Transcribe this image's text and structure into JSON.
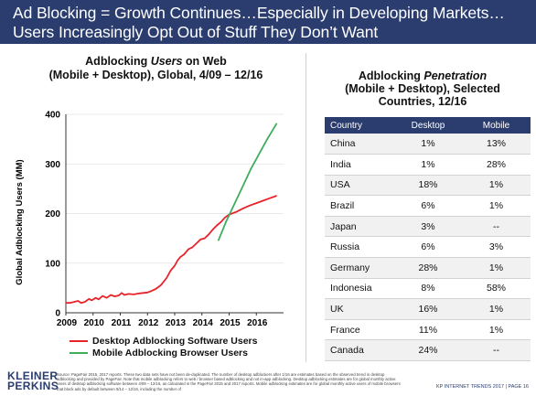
{
  "header": {
    "line1": "Ad Blocking = Growth Continues…Especially in Developing Markets…",
    "line2": "Users Increasingly Opt Out of Stuff They Don’t Want"
  },
  "left_title": {
    "pre": "Adblocking ",
    "italic": "Users",
    "post": " on Web",
    "line2": "(Mobile + Desktop), Global, 4/09 – 12/16"
  },
  "chart_data": {
    "type": "line",
    "title": "Adblocking Users on Web (Mobile + Desktop), Global, 4/09 – 12/16",
    "ylabel": "Global Adblocking Users (MM)",
    "xlabel": "",
    "ylim": [
      0,
      400
    ],
    "yticks": [
      0,
      100,
      200,
      300,
      400
    ],
    "xlim": [
      2009,
      2017
    ],
    "xticks": [
      "2009",
      "2010",
      "2011",
      "2012",
      "2013",
      "2014",
      "2015",
      "2016"
    ],
    "series": [
      {
        "name": "Desktop Adblocking Software Users",
        "color": "#e8232a",
        "points": [
          [
            2009.0,
            20
          ],
          [
            2009.15,
            20
          ],
          [
            2009.3,
            22
          ],
          [
            2009.45,
            24
          ],
          [
            2009.55,
            20
          ],
          [
            2009.7,
            22
          ],
          [
            2009.85,
            28
          ],
          [
            2009.95,
            25
          ],
          [
            2010.1,
            30
          ],
          [
            2010.2,
            27
          ],
          [
            2010.35,
            34
          ],
          [
            2010.5,
            30
          ],
          [
            2010.65,
            36
          ],
          [
            2010.8,
            33
          ],
          [
            2010.95,
            35
          ],
          [
            2011.05,
            40
          ],
          [
            2011.15,
            36
          ],
          [
            2011.3,
            38
          ],
          [
            2011.5,
            37
          ],
          [
            2011.7,
            39
          ],
          [
            2011.85,
            40
          ],
          [
            2012.0,
            41
          ],
          [
            2012.15,
            44
          ],
          [
            2012.3,
            48
          ],
          [
            2012.5,
            56
          ],
          [
            2012.7,
            70
          ],
          [
            2012.85,
            85
          ],
          [
            2013.0,
            95
          ],
          [
            2013.1,
            105
          ],
          [
            2013.2,
            112
          ],
          [
            2013.35,
            118
          ],
          [
            2013.5,
            128
          ],
          [
            2013.65,
            132
          ],
          [
            2013.8,
            140
          ],
          [
            2013.95,
            148
          ],
          [
            2014.1,
            150
          ],
          [
            2014.25,
            158
          ],
          [
            2014.4,
            168
          ],
          [
            2014.55,
            176
          ],
          [
            2014.7,
            183
          ],
          [
            2014.85,
            192
          ],
          [
            2015.0,
            198
          ],
          [
            2015.25,
            203
          ],
          [
            2015.5,
            210
          ],
          [
            2015.75,
            216
          ],
          [
            2016.0,
            221
          ],
          [
            2016.25,
            226
          ],
          [
            2016.5,
            231
          ],
          [
            2016.75,
            236
          ]
        ]
      },
      {
        "name": "Mobile Adblocking Browser Users",
        "color": "#3fae5b",
        "points": [
          [
            2014.6,
            145
          ],
          [
            2014.9,
            185
          ],
          [
            2015.2,
            220
          ],
          [
            2015.5,
            255
          ],
          [
            2015.8,
            290
          ],
          [
            2016.1,
            320
          ],
          [
            2016.4,
            350
          ],
          [
            2016.75,
            382
          ]
        ]
      }
    ],
    "legend": "bottom-left"
  },
  "right_title": {
    "pre": "Adblocking ",
    "italic": "Penetration",
    "line2": "(Mobile + Desktop), Selected",
    "line3": "Countries, 12/16"
  },
  "table": {
    "headers": [
      "Country",
      "Desktop",
      "Mobile"
    ],
    "rows": [
      [
        "China",
        "1%",
        "13%"
      ],
      [
        "India",
        "1%",
        "28%"
      ],
      [
        "USA",
        "18%",
        "1%"
      ],
      [
        "Brazil",
        "6%",
        "1%"
      ],
      [
        "Japan",
        "3%",
        "--"
      ],
      [
        "Russia",
        "6%",
        "3%"
      ],
      [
        "Germany",
        "28%",
        "1%"
      ],
      [
        "Indonesia",
        "8%",
        "58%"
      ],
      [
        "UK",
        "16%",
        "1%"
      ],
      [
        "France",
        "11%",
        "1%"
      ],
      [
        "Canada",
        "24%",
        "--"
      ]
    ]
  },
  "footer": {
    "logo_line1": "KLEINER",
    "logo_line2": "PERKINS",
    "source": "Source: PageFair 2015, 2017 reports. These two data sets have not been de-duplicated. The number of desktop adblockers after 1/16 are estimates based on the observed trend in desktop adblocking and provided by PageFair. Note that mobile adblocking refers to web / browser based adblocking and not in-app adblocking. Desktop adblocking estimates are for global monthly active users of desktop adblocking software between 4/09 – 12/16, as calculated in the PageFair 2015 and 2017 reports. Mobile adblocking estimates are for global monthly active users of mobile browsers that block ads by default between 9/14 – 12/16, including the number of",
    "right": "KP INTERNET TRENDS 2017  |  PAGE 16"
  }
}
